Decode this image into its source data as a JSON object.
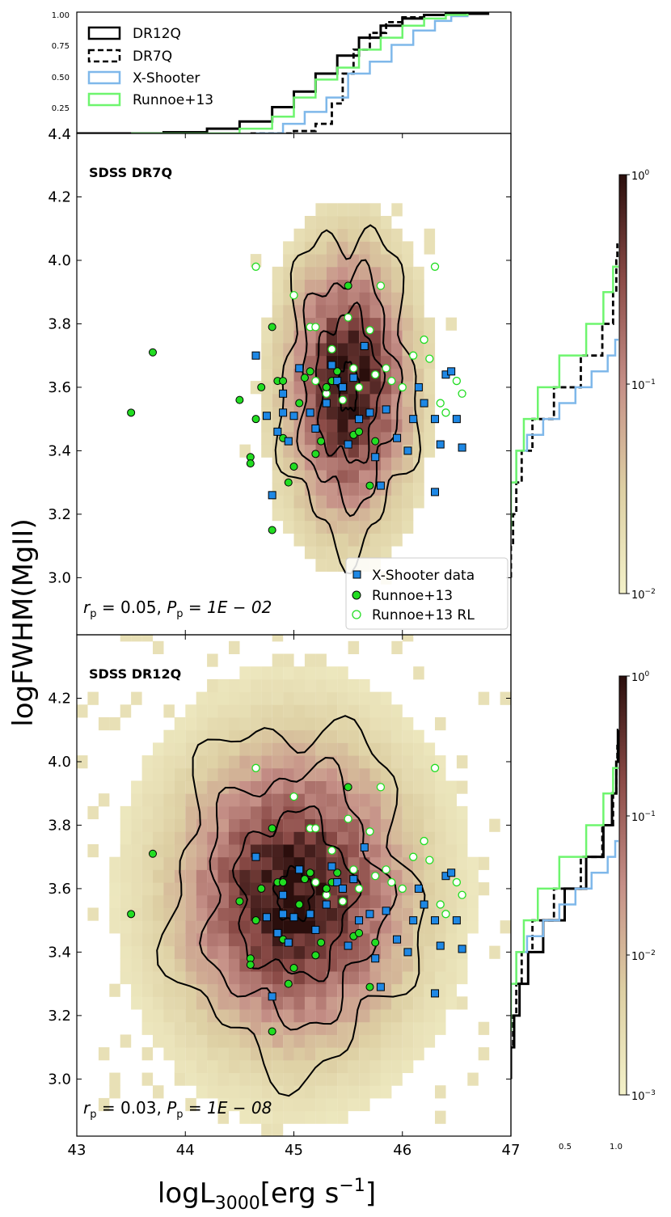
{
  "axes": {
    "xlabel_main": "logL",
    "xlabel_sub": "3000",
    "xlabel_unit": "[erg s",
    "xlabel_exp": "−1",
    "xlabel_close": "]",
    "ylabel": "logFWHM(MgII)",
    "x_ticks": [
      "43",
      "44",
      "45",
      "46",
      "47"
    ],
    "y_ticks": [
      "3.0",
      "3.2",
      "3.4",
      "3.6",
      "3.8",
      "4.0",
      "4.2"
    ],
    "y_top_tick": "4.4",
    "cdf_ticks": [
      "0.25",
      "0.50",
      "0.75",
      "1.00"
    ],
    "side_ticks": [
      "0.5",
      "1.0"
    ]
  },
  "top_legend": [
    "DR12Q",
    "DR7Q",
    "X-Shooter",
    "Runnoe+13"
  ],
  "panel1": {
    "title": "SDSS DR7Q",
    "stat": {
      "r": "r",
      "r_sub": "p",
      "r_val": " = 0.05, ",
      "P": "P",
      "P_sub": "p",
      "P_val": " = 1E − 02"
    },
    "legend": [
      "X-Shooter data",
      "Runnoe+13",
      "Runnoe+13 RL"
    ],
    "colorbar": {
      "top_base": "10",
      "top_exp": "0",
      "mid_base": "10",
      "mid_exp": "−1",
      "bot_base": "10",
      "bot_exp": "−2"
    }
  },
  "panel2": {
    "title": "SDSS DR12Q",
    "stat": {
      "r": "r",
      "r_sub": "p",
      "r_val": " = 0.03, ",
      "P": "P",
      "P_sub": "p",
      "P_val": " = 1E − 08"
    },
    "colorbar": {
      "top_base": "10",
      "top_exp": "0",
      "t1_base": "10",
      "t1_exp": "−1",
      "t2_base": "10",
      "t2_exp": "−2",
      "bot_base": "10",
      "bot_exp": "−3"
    }
  },
  "colors": {
    "xshooter": "#1e88e5",
    "runnoe": "#22dd22",
    "xshooter_cdf": "#7fb8ea",
    "runnoe_cdf": "#6ef56e",
    "contour": "#000000"
  },
  "chart_data": [
    {
      "type": "line",
      "name": "top-cdf",
      "xlim": [
        43,
        47
      ],
      "ylim": [
        0,
        1
      ],
      "series": [
        {
          "name": "DR12Q",
          "x": [
            43.0,
            43.8,
            44.2,
            44.5,
            44.8,
            45.0,
            45.2,
            45.4,
            45.6,
            45.8,
            46.0,
            46.2,
            46.4,
            46.8
          ],
          "y": [
            0.0,
            0.01,
            0.04,
            0.1,
            0.22,
            0.35,
            0.5,
            0.65,
            0.8,
            0.9,
            0.96,
            0.99,
            1.0,
            1.0
          ]
        },
        {
          "name": "DR7Q",
          "x": [
            44.6,
            45.0,
            45.2,
            45.35,
            45.45,
            45.55,
            45.7,
            45.85,
            46.0,
            46.2,
            46.4,
            46.6
          ],
          "y": [
            0.0,
            0.02,
            0.08,
            0.25,
            0.5,
            0.7,
            0.84,
            0.93,
            0.97,
            0.99,
            1.0,
            1.0
          ]
        },
        {
          "name": "X-Shooter",
          "x": [
            44.65,
            44.9,
            45.1,
            45.3,
            45.5,
            45.7,
            45.9,
            46.1,
            46.3,
            46.45,
            46.6
          ],
          "y": [
            0.0,
            0.08,
            0.18,
            0.3,
            0.5,
            0.6,
            0.74,
            0.86,
            0.94,
            0.98,
            1.0
          ]
        },
        {
          "name": "Runnoe+13",
          "x": [
            43.5,
            44.5,
            44.8,
            45.0,
            45.2,
            45.4,
            45.6,
            45.8,
            46.0,
            46.2,
            46.4,
            46.6
          ],
          "y": [
            0.0,
            0.04,
            0.14,
            0.3,
            0.45,
            0.55,
            0.7,
            0.8,
            0.9,
            0.96,
            0.99,
            1.0
          ]
        }
      ]
    },
    {
      "type": "scatter",
      "name": "SDSS DR7Q",
      "xlabel": "logL3000[erg s−1]",
      "ylabel": "logFWHM(MgII)",
      "xlim": [
        43,
        47
      ],
      "ylim": [
        2.82,
        4.4
      ],
      "density_center": [
        45.5,
        3.6
      ],
      "density_sigma": [
        0.3,
        0.22
      ],
      "contour_levels": 4,
      "series": [
        {
          "name": "X-Shooter data",
          "x": [
            44.65,
            44.75,
            44.85,
            44.95,
            44.9,
            45.0,
            45.05,
            45.2,
            45.3,
            45.35,
            45.4,
            45.5,
            45.55,
            45.6,
            45.7,
            45.75,
            45.8,
            45.85,
            45.95,
            46.05,
            46.1,
            46.15,
            46.2,
            46.3,
            46.35,
            46.4,
            46.45,
            46.5,
            46.55,
            46.3,
            44.9,
            44.8,
            45.15,
            45.45,
            45.65
          ],
          "y": [
            3.7,
            3.51,
            3.46,
            3.43,
            3.58,
            3.51,
            3.66,
            3.47,
            3.55,
            3.67,
            3.62,
            3.42,
            3.63,
            3.5,
            3.52,
            3.38,
            3.29,
            3.53,
            3.44,
            3.4,
            3.5,
            3.6,
            3.55,
            3.5,
            3.42,
            3.64,
            3.65,
            3.5,
            3.41,
            3.27,
            3.52,
            3.26,
            3.52,
            3.6,
            3.73
          ]
        },
        {
          "name": "Runnoe+13",
          "x": [
            43.5,
            43.7,
            44.5,
            44.6,
            44.6,
            44.65,
            44.7,
            44.8,
            44.85,
            44.9,
            44.95,
            45.0,
            45.05,
            45.1,
            45.2,
            45.3,
            45.4,
            45.5,
            45.55,
            45.6,
            45.7,
            44.9,
            45.15,
            45.25,
            45.35,
            45.45,
            45.75,
            44.8
          ],
          "y": [
            3.52,
            3.71,
            3.56,
            3.38,
            3.36,
            3.5,
            3.6,
            3.79,
            3.62,
            3.44,
            3.3,
            3.35,
            3.55,
            3.63,
            3.39,
            3.6,
            3.65,
            3.92,
            3.45,
            3.46,
            3.29,
            3.62,
            3.65,
            3.43,
            3.62,
            3.6,
            3.43,
            3.15
          ]
        },
        {
          "name": "Runnoe+13 RL",
          "x": [
            44.65,
            45.0,
            45.15,
            45.2,
            45.35,
            45.5,
            45.55,
            45.7,
            45.75,
            45.8,
            45.9,
            46.0,
            46.1,
            46.2,
            46.25,
            46.3,
            46.35,
            46.4,
            46.5,
            45.2,
            45.3,
            45.45,
            45.6,
            45.85,
            46.55
          ],
          "y": [
            3.98,
            3.89,
            3.79,
            3.79,
            3.72,
            3.82,
            3.66,
            3.78,
            3.64,
            3.92,
            3.62,
            3.6,
            3.7,
            3.75,
            3.69,
            3.98,
            3.55,
            3.52,
            3.62,
            3.62,
            3.58,
            3.56,
            3.6,
            3.66,
            3.58
          ]
        }
      ]
    },
    {
      "type": "scatter",
      "name": "SDSS DR12Q",
      "xlabel": "logL3000[erg s−1]",
      "ylabel": "logFWHM(MgII)",
      "xlim": [
        43,
        47
      ],
      "ylim": [
        2.82,
        4.4
      ],
      "density_center": [
        45.0,
        3.58
      ],
      "density_sigma": [
        0.55,
        0.24
      ],
      "contour_levels": 4,
      "series": [
        {
          "name": "X-Shooter data",
          "x": [
            44.65,
            44.75,
            44.85,
            44.95,
            44.9,
            45.0,
            45.05,
            45.2,
            45.3,
            45.35,
            45.4,
            45.5,
            45.55,
            45.6,
            45.7,
            45.75,
            45.8,
            45.85,
            45.95,
            46.05,
            46.1,
            46.15,
            46.2,
            46.3,
            46.35,
            46.4,
            46.45,
            46.5,
            46.55,
            46.3,
            44.9,
            44.8,
            45.15,
            45.45,
            45.65
          ],
          "y": [
            3.7,
            3.51,
            3.46,
            3.43,
            3.58,
            3.51,
            3.66,
            3.47,
            3.55,
            3.67,
            3.62,
            3.42,
            3.63,
            3.5,
            3.52,
            3.38,
            3.29,
            3.53,
            3.44,
            3.4,
            3.5,
            3.6,
            3.55,
            3.5,
            3.42,
            3.64,
            3.65,
            3.5,
            3.41,
            3.27,
            3.52,
            3.26,
            3.52,
            3.6,
            3.73
          ]
        },
        {
          "name": "Runnoe+13",
          "x": [
            43.5,
            43.7,
            44.5,
            44.6,
            44.6,
            44.65,
            44.7,
            44.8,
            44.85,
            44.9,
            44.95,
            45.0,
            45.05,
            45.1,
            45.2,
            45.3,
            45.4,
            45.5,
            45.55,
            45.6,
            45.7,
            44.9,
            45.15,
            45.25,
            45.35,
            45.45,
            45.75,
            44.8
          ],
          "y": [
            3.52,
            3.71,
            3.56,
            3.38,
            3.36,
            3.5,
            3.6,
            3.79,
            3.62,
            3.44,
            3.3,
            3.35,
            3.55,
            3.63,
            3.39,
            3.6,
            3.65,
            3.92,
            3.45,
            3.46,
            3.29,
            3.62,
            3.65,
            3.43,
            3.62,
            3.6,
            3.43,
            3.15
          ]
        },
        {
          "name": "Runnoe+13 RL",
          "x": [
            44.65,
            45.0,
            45.15,
            45.2,
            45.35,
            45.5,
            45.55,
            45.7,
            45.75,
            45.8,
            45.9,
            46.0,
            46.1,
            46.2,
            46.25,
            46.3,
            46.35,
            46.4,
            46.5,
            45.2,
            45.3,
            45.45,
            45.6,
            45.85,
            46.55
          ],
          "y": [
            3.98,
            3.89,
            3.79,
            3.79,
            3.72,
            3.82,
            3.66,
            3.78,
            3.64,
            3.92,
            3.62,
            3.6,
            3.7,
            3.75,
            3.69,
            3.98,
            3.55,
            3.52,
            3.62,
            3.62,
            3.58,
            3.56,
            3.6,
            3.66,
            3.58
          ]
        }
      ]
    },
    {
      "type": "line",
      "name": "side-cdf-dr7q",
      "xlim": [
        0,
        1
      ],
      "ylim": [
        2.82,
        4.4
      ],
      "series": [
        {
          "name": "DR7Q",
          "y": [
            3.0,
            3.1,
            3.2,
            3.3,
            3.4,
            3.5,
            3.6,
            3.7,
            3.8,
            3.9,
            4.0,
            4.05
          ],
          "x": [
            0.0,
            0.02,
            0.05,
            0.1,
            0.2,
            0.4,
            0.65,
            0.85,
            0.95,
            0.98,
            0.99,
            1.0
          ]
        },
        {
          "name": "X-Shooter",
          "y": [
            3.26,
            3.3,
            3.4,
            3.45,
            3.5,
            3.55,
            3.6,
            3.65,
            3.7,
            3.75
          ],
          "x": [
            0.0,
            0.05,
            0.15,
            0.3,
            0.45,
            0.6,
            0.75,
            0.9,
            0.97,
            1.0
          ]
        },
        {
          "name": "Runnoe+13",
          "y": [
            3.15,
            3.3,
            3.4,
            3.5,
            3.6,
            3.7,
            3.8,
            3.9,
            3.98
          ],
          "x": [
            0.0,
            0.05,
            0.12,
            0.25,
            0.45,
            0.7,
            0.86,
            0.95,
            1.0
          ]
        }
      ]
    },
    {
      "type": "line",
      "name": "side-cdf-dr12q",
      "xlim": [
        0,
        1
      ],
      "ylim": [
        2.82,
        4.4
      ],
      "series": [
        {
          "name": "DR12Q",
          "y": [
            3.0,
            3.1,
            3.2,
            3.3,
            3.4,
            3.5,
            3.6,
            3.7,
            3.8,
            3.9,
            4.0,
            4.1
          ],
          "x": [
            0.0,
            0.03,
            0.08,
            0.16,
            0.3,
            0.5,
            0.7,
            0.86,
            0.94,
            0.98,
            0.995,
            1.0
          ]
        },
        {
          "name": "DR7Q",
          "y": [
            3.0,
            3.1,
            3.2,
            3.3,
            3.4,
            3.5,
            3.6,
            3.7,
            3.8,
            3.9,
            4.0,
            4.05
          ],
          "x": [
            0.0,
            0.02,
            0.05,
            0.1,
            0.2,
            0.4,
            0.65,
            0.85,
            0.95,
            0.98,
            0.99,
            1.0
          ]
        },
        {
          "name": "X-Shooter",
          "y": [
            3.26,
            3.3,
            3.4,
            3.45,
            3.5,
            3.55,
            3.6,
            3.65,
            3.7,
            3.75
          ],
          "x": [
            0.0,
            0.05,
            0.15,
            0.3,
            0.45,
            0.6,
            0.75,
            0.9,
            0.97,
            1.0
          ]
        },
        {
          "name": "Runnoe+13",
          "y": [
            3.15,
            3.3,
            3.4,
            3.5,
            3.6,
            3.7,
            3.8,
            3.9,
            3.98
          ],
          "x": [
            0.0,
            0.05,
            0.12,
            0.25,
            0.45,
            0.7,
            0.86,
            0.95,
            1.0
          ]
        }
      ]
    }
  ]
}
